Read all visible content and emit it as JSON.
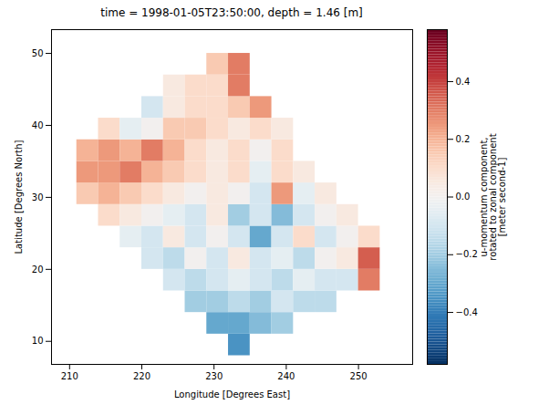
{
  "chart_data": {
    "type": "heatmap",
    "title": "time = 1998-01-05T23:50:00, depth = 1.46 [m]",
    "x_label": "Longitude [Degrees East]",
    "y_label": "Latitude [Degrees North]",
    "xlim": [
      207.5,
      257.5
    ],
    "xticks": [
      210,
      220,
      230,
      240,
      250
    ],
    "ylim": [
      6.8,
      53.3
    ],
    "yticks": [
      10,
      20,
      30,
      40,
      50
    ],
    "grid": false,
    "cells": {
      "lon": [
        209.5,
        212.5,
        215.5,
        218.5,
        221.5,
        224.5,
        227.5,
        230.5,
        233.5,
        236.5,
        239.5,
        242.5,
        245.5,
        248.5,
        251.5,
        254.5
      ],
      "lat": [
        9.5,
        12.5,
        15.5,
        18.5,
        21.5,
        24.5,
        27.5,
        30.5,
        33.5,
        36.5,
        39.5,
        42.5,
        45.5,
        48.5
      ],
      "values": [
        [
          null,
          null,
          null,
          null,
          null,
          null,
          null,
          null,
          -0.35,
          null,
          null,
          null,
          null,
          null,
          null,
          null
        ],
        [
          null,
          null,
          null,
          null,
          null,
          null,
          null,
          -0.3,
          -0.3,
          -0.25,
          -0.2,
          null,
          null,
          null,
          null,
          null
        ],
        [
          null,
          null,
          null,
          null,
          null,
          null,
          -0.2,
          -0.2,
          -0.15,
          -0.2,
          -0.1,
          -0.15,
          -0.15,
          null,
          null,
          null
        ],
        [
          null,
          null,
          null,
          null,
          null,
          -0.1,
          -0.15,
          -0.1,
          -0.05,
          -0.1,
          -0.15,
          -0.05,
          -0.1,
          -0.1,
          0.3,
          null
        ],
        [
          null,
          null,
          null,
          null,
          -0.1,
          -0.15,
          0.0,
          -0.1,
          0.05,
          -0.1,
          -0.05,
          -0.15,
          0.0,
          0.05,
          0.35,
          null
        ],
        [
          null,
          null,
          null,
          -0.05,
          -0.1,
          0.05,
          -0.1,
          0.0,
          -0.1,
          -0.3,
          -0.1,
          0.1,
          -0.1,
          0.0,
          0.1,
          null
        ],
        [
          null,
          null,
          0.1,
          0.05,
          0.0,
          -0.05,
          -0.1,
          0.05,
          -0.2,
          -0.1,
          -0.25,
          -0.1,
          0.0,
          0.05,
          null,
          null
        ],
        [
          null,
          0.15,
          0.2,
          0.15,
          0.1,
          0.05,
          0.0,
          0.05,
          0.0,
          -0.1,
          0.25,
          -0.05,
          0.05,
          null,
          null,
          null
        ],
        [
          null,
          0.25,
          0.25,
          0.3,
          0.2,
          0.15,
          0.1,
          0.05,
          0.1,
          -0.05,
          0.1,
          0.05,
          null,
          null,
          null,
          null
        ],
        [
          null,
          0.2,
          0.25,
          0.2,
          0.3,
          0.2,
          0.1,
          0.05,
          0.1,
          0.0,
          0.1,
          null,
          null,
          null,
          null,
          null
        ],
        [
          null,
          null,
          0.1,
          -0.05,
          0.0,
          0.15,
          0.15,
          0.1,
          0.05,
          0.1,
          0.05,
          null,
          null,
          null,
          null,
          null
        ],
        [
          null,
          null,
          null,
          null,
          -0.1,
          0.05,
          0.1,
          0.1,
          0.15,
          0.25,
          null,
          null,
          null,
          null,
          null,
          null
        ],
        [
          null,
          null,
          null,
          null,
          null,
          0.05,
          0.1,
          0.1,
          0.3,
          null,
          null,
          null,
          null,
          null,
          null,
          null
        ],
        [
          null,
          null,
          null,
          null,
          null,
          null,
          null,
          0.15,
          0.3,
          null,
          null,
          null,
          null,
          null,
          null,
          null
        ]
      ]
    },
    "colorbar": {
      "range": [
        -0.58,
        0.58
      ],
      "ticks": [
        {
          "value": -0.4,
          "label": "−0.4"
        },
        {
          "value": -0.2,
          "label": "−0.2"
        },
        {
          "value": 0,
          "label": "0.0"
        },
        0.2,
        0.4
      ],
      "label": "u-momentum component, rotated to zonal component [meter second-1]"
    }
  }
}
